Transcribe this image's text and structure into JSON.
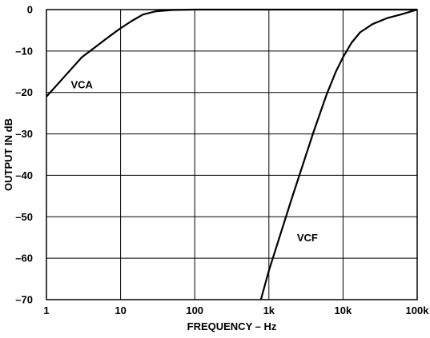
{
  "chart_data": {
    "type": "line",
    "title": "",
    "xlabel": "FREQUENCY – Hz",
    "ylabel": "OUTPUT IN dB",
    "x_scale": "log",
    "xlim": [
      1,
      100000
    ],
    "ylim": [
      -70,
      0
    ],
    "grid": true,
    "x_ticks": [
      {
        "value": 1,
        "label": "1"
      },
      {
        "value": 10,
        "label": "10"
      },
      {
        "value": 100,
        "label": "100"
      },
      {
        "value": 1000,
        "label": "1k"
      },
      {
        "value": 10000,
        "label": "10k"
      },
      {
        "value": 100000,
        "label": "100k"
      }
    ],
    "y_ticks": [
      {
        "value": 0,
        "label": "0"
      },
      {
        "value": -10,
        "label": "–10"
      },
      {
        "value": -20,
        "label": "–20"
      },
      {
        "value": -30,
        "label": "–30"
      },
      {
        "value": -40,
        "label": "–40"
      },
      {
        "value": -50,
        "label": "–50"
      },
      {
        "value": -60,
        "label": "–60"
      },
      {
        "value": -70,
        "label": "–70"
      }
    ],
    "series": [
      {
        "name": "VCA",
        "points": [
          [
            1,
            -21
          ],
          [
            1.5,
            -17.5
          ],
          [
            2,
            -15
          ],
          [
            3,
            -11.5
          ],
          [
            5,
            -8.5
          ],
          [
            7,
            -6.5
          ],
          [
            10,
            -4.5
          ],
          [
            14,
            -2.8
          ],
          [
            20,
            -1.2
          ],
          [
            30,
            -0.4
          ],
          [
            50,
            -0.1
          ],
          [
            100,
            0
          ],
          [
            1000,
            0
          ],
          [
            10000,
            0
          ],
          [
            100000,
            0
          ]
        ]
      },
      {
        "name": "VCF",
        "points": [
          [
            780,
            -70
          ],
          [
            1000,
            -63
          ],
          [
            2000,
            -46
          ],
          [
            4000,
            -29.5
          ],
          [
            6000,
            -20.5
          ],
          [
            8000,
            -15
          ],
          [
            10000,
            -11.5
          ],
          [
            13000,
            -8
          ],
          [
            17000,
            -5.5
          ],
          [
            25000,
            -3.5
          ],
          [
            40000,
            -2
          ],
          [
            60000,
            -1.2
          ],
          [
            100000,
            0
          ]
        ]
      }
    ],
    "annotations": [
      {
        "text": "VCA",
        "x": 3,
        "y": -18
      },
      {
        "text": "VCF",
        "x": 3300,
        "y": -55
      }
    ]
  }
}
